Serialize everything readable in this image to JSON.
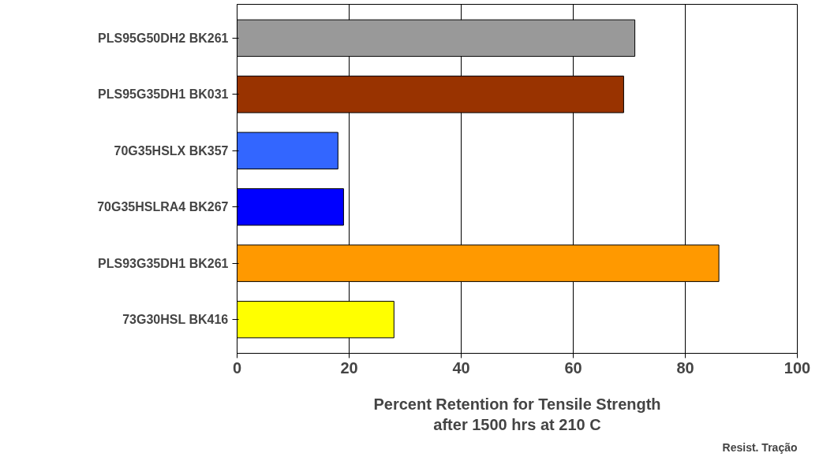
{
  "chart_data": {
    "type": "bar",
    "orientation": "horizontal",
    "categories": [
      "PLS95G50DH2 BK261",
      "PLS95G35DH1 BK031",
      "70G35HSLX BK357",
      "70G35HSLRA4 BK267",
      "PLS93G35DH1 BK261",
      "73G30HSL BK416"
    ],
    "values": [
      71,
      69,
      18,
      19,
      86,
      28
    ],
    "colors": [
      "#999999",
      "#993300",
      "#3366ff",
      "#0000ff",
      "#ff9900",
      "#ffff00"
    ],
    "xlim": [
      0,
      100
    ],
    "xticks": [
      0,
      20,
      40,
      60,
      80,
      100
    ],
    "grid": "x",
    "xlabel": "Percent Retention for Tensile Strength\nafter 1500 hrs at 210 C",
    "annotations": [
      "Resist. Tração"
    ]
  }
}
